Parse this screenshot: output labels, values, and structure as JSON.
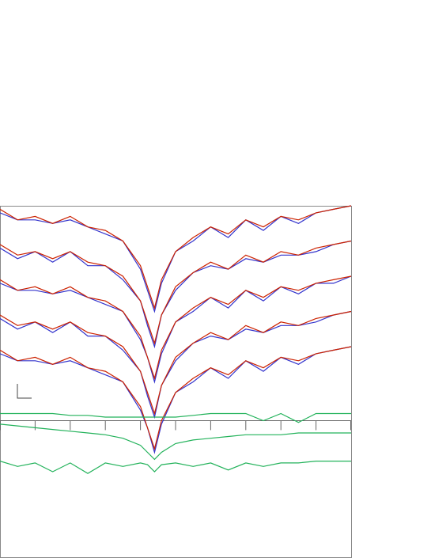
{
  "chart_data": {
    "type": "line",
    "x": [
      0,
      5,
      10,
      15,
      20,
      25,
      30,
      35,
      40,
      42,
      44,
      46,
      50,
      55,
      60,
      65,
      70,
      75,
      80,
      85,
      90,
      95,
      100
    ],
    "xlim": [
      0,
      100
    ],
    "ylim": [
      0,
      100
    ],
    "xticks": [
      0,
      10,
      20,
      30,
      40,
      50,
      60,
      70,
      80,
      90,
      100
    ],
    "axis_y": 39,
    "series": [
      {
        "color": "#3333cc",
        "values": [
          98,
          96,
          96,
          95,
          96,
          94,
          92,
          90,
          82,
          76,
          70,
          78,
          87,
          90,
          94,
          91,
          96,
          93,
          97,
          95,
          98,
          99,
          100
        ]
      },
      {
        "color": "#cc2200",
        "values": [
          99,
          96,
          97,
          95,
          97,
          94,
          93,
          90,
          83,
          77,
          71,
          79,
          87,
          91,
          94,
          92,
          96,
          94,
          97,
          96,
          98,
          99,
          100
        ]
      },
      {
        "color": "#3333cc",
        "values": [
          88,
          85,
          87,
          84,
          87,
          83,
          83,
          79,
          73,
          66,
          60,
          69,
          76,
          81,
          83,
          82,
          85,
          84,
          86,
          86,
          87,
          89,
          90
        ]
      },
      {
        "color": "#cc2200",
        "values": [
          89,
          86,
          87,
          85,
          87,
          84,
          83,
          80,
          73,
          67,
          61,
          69,
          77,
          81,
          84,
          82,
          86,
          84,
          87,
          86,
          88,
          89,
          90
        ]
      },
      {
        "color": "#3333cc",
        "values": [
          78,
          76,
          76,
          75,
          76,
          74,
          72,
          70,
          62,
          57,
          50,
          58,
          67,
          70,
          74,
          71,
          76,
          73,
          77,
          75,
          78,
          78,
          80
        ]
      },
      {
        "color": "#cc2200",
        "values": [
          79,
          76,
          77,
          75,
          77,
          74,
          73,
          70,
          63,
          57,
          51,
          59,
          67,
          71,
          74,
          72,
          76,
          74,
          77,
          76,
          78,
          79,
          80
        ]
      },
      {
        "color": "#3333cc",
        "values": [
          68,
          65,
          67,
          64,
          67,
          63,
          63,
          59,
          53,
          46,
          40,
          49,
          56,
          61,
          63,
          62,
          65,
          64,
          66,
          66,
          67,
          69,
          70
        ]
      },
      {
        "color": "#cc2200",
        "values": [
          69,
          66,
          67,
          65,
          67,
          64,
          63,
          60,
          53,
          47,
          41,
          49,
          57,
          61,
          64,
          62,
          66,
          64,
          67,
          66,
          68,
          69,
          70
        ]
      },
      {
        "color": "#3333cc",
        "values": [
          58,
          56,
          56,
          55,
          56,
          54,
          52,
          50,
          42,
          37,
          30,
          38,
          47,
          50,
          54,
          51,
          56,
          53,
          57,
          55,
          58,
          59,
          60
        ]
      },
      {
        "color": "#cc2200",
        "values": [
          59,
          56,
          57,
          55,
          57,
          54,
          53,
          50,
          43,
          37,
          31,
          39,
          47,
          51,
          54,
          52,
          56,
          54,
          57,
          56,
          58,
          59,
          60
        ]
      },
      {
        "color": "#22b25a",
        "values": [
          41,
          41,
          41,
          41,
          40.5,
          40.5,
          40,
          40,
          40,
          40,
          40,
          40,
          40,
          40.5,
          41,
          41,
          41,
          39,
          41,
          38.5,
          41,
          41,
          41
        ]
      },
      {
        "color": "#22b25a",
        "values": [
          38,
          37.5,
          37,
          36.5,
          36,
          35.5,
          35,
          34,
          32,
          30,
          28,
          30,
          32.5,
          33.5,
          34,
          34.5,
          35,
          35,
          35,
          35.5,
          35.5,
          35.5,
          35.5
        ]
      },
      {
        "color": "#22b25a",
        "values": [
          27.5,
          26,
          27,
          24.5,
          27,
          24,
          27,
          26,
          27,
          26.5,
          24.5,
          26.5,
          27,
          26,
          27,
          25,
          27,
          26,
          27,
          27,
          27.5,
          27.5,
          27.5
        ]
      }
    ]
  }
}
